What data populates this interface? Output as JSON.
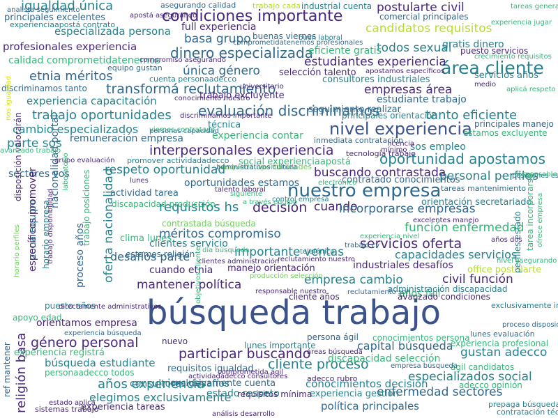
{
  "palette": {
    "c1": "#3b528b",
    "c2": "#482878",
    "c3": "#31688e",
    "c4": "#26828e",
    "c5": "#1f9e89",
    "c6": "#35b779",
    "c7": "#6ece58",
    "c8": "#b5de2b",
    "c9": "#d7e219"
  },
  "words": [
    {
      "text": "búsqueda trabajo",
      "weight": 1.0,
      "color": "c1"
    },
    {
      "text": "nuestro empresa",
      "weight": 0.48,
      "color": "c3"
    },
    {
      "text": "nivel experiencia",
      "weight": 0.43,
      "color": "c1"
    },
    {
      "text": "área cliente",
      "weight": 0.46,
      "color": "c4"
    },
    {
      "text": "condiciones importante",
      "weight": 0.38,
      "color": "c2"
    },
    {
      "text": "dinero especializada",
      "weight": 0.33,
      "color": "c3"
    },
    {
      "text": "transformá reclutamiento",
      "weight": 0.32,
      "color": "c3"
    },
    {
      "text": "evaluación discriminamos",
      "weight": 0.34,
      "color": "c3"
    },
    {
      "text": "interpersonales experiencia",
      "weight": 0.32,
      "color": "c2"
    },
    {
      "text": "oportunidad apostamos",
      "weight": 0.34,
      "color": "c4"
    },
    {
      "text": "cliente proceso",
      "weight": 0.32,
      "color": "c4"
    },
    {
      "text": "participar buscando",
      "weight": 0.32,
      "color": "c2"
    },
    {
      "text": "género personal",
      "weight": 0.3,
      "color": "c2"
    },
    {
      "text": "religión basa",
      "weight": 0.28,
      "color": "c2"
    },
    {
      "text": "servicios oferta",
      "weight": 0.3,
      "color": "c2"
    },
    {
      "text": "igualdad única",
      "weight": 0.29,
      "color": "c4"
    },
    {
      "text": "postularte civil",
      "weight": 0.27,
      "color": "c2"
    },
    {
      "text": "trabajo oportunidades",
      "weight": 0.29,
      "color": "c4"
    },
    {
      "text": "etnia méritos",
      "weight": 0.29,
      "color": "c3"
    },
    {
      "text": "decisión",
      "weight": 0.3,
      "color": "c2"
    },
    {
      "text": "cuando",
      "weight": 0.25,
      "color": "c2"
    },
    {
      "text": "requisitos hs",
      "weight": 0.28,
      "color": "c4"
    },
    {
      "text": "méritos compromiso",
      "weight": 0.27,
      "color": "c3"
    },
    {
      "text": "importante ventas",
      "weight": 0.27,
      "color": "c4"
    },
    {
      "text": "años experiencia",
      "weight": 0.28,
      "color": "c4"
    },
    {
      "text": "enfermedad sectores",
      "weight": 0.27,
      "color": "c3"
    },
    {
      "text": "gustan adecco",
      "weight": 0.27,
      "color": "c4"
    },
    {
      "text": "empresa cambio",
      "weight": 0.27,
      "color": "c4"
    },
    {
      "text": "civil función",
      "weight": 0.27,
      "color": "c2"
    },
    {
      "text": "mantener política",
      "weight": 0.26,
      "color": "c2"
    },
    {
      "text": "empresas área",
      "weight": 0.27,
      "color": "c2"
    },
    {
      "text": "tanto eficiente",
      "weight": 0.28,
      "color": "c4"
    },
    {
      "text": "única género",
      "weight": 0.27,
      "color": "c3"
    },
    {
      "text": "basa grupo",
      "weight": 0.27,
      "color": "c3"
    },
    {
      "text": "estudiantes experiencia",
      "weight": 0.26,
      "color": "c2"
    },
    {
      "text": "todos sexual",
      "weight": 0.26,
      "color": "c4"
    },
    {
      "text": "candidatos requisitos",
      "weight": 0.26,
      "color": "c8"
    },
    {
      "text": "respeto oportunidad",
      "weight": 0.26,
      "color": "c4"
    },
    {
      "text": "buscando contrastada",
      "weight": 0.25,
      "color": "c2"
    },
    {
      "text": "personal perfiles",
      "weight": 0.27,
      "color": "c4"
    },
    {
      "text": "incorporarse empresas",
      "weight": 0.26,
      "color": "c3"
    },
    {
      "text": "función enfermedad",
      "weight": 0.26,
      "color": "c6"
    },
    {
      "text": "cambio especializados",
      "weight": 0.24,
      "color": "c4"
    },
    {
      "text": "parte sos",
      "weight": 0.25,
      "color": "c4"
    },
    {
      "text": "especializados social",
      "weight": 0.26,
      "color": "c4"
    },
    {
      "text": "capital búsqueda",
      "weight": 0.24,
      "color": "c3"
    },
    {
      "text": "elegimos exclusivamente",
      "weight": 0.23,
      "color": "c4"
    },
    {
      "text": "desafíos parte",
      "weight": 0.24,
      "color": "c3"
    },
    {
      "text": "oferta nacionalidad",
      "weight": 0.25,
      "color": "c4"
    },
    {
      "text": "capacidades servicios",
      "weight": 0.24,
      "color": "c4"
    },
    {
      "text": "especializada persona",
      "weight": 0.21,
      "color": "c4"
    },
    {
      "text": "profesionales experiencia",
      "weight": 0.22,
      "color": "c2"
    },
    {
      "text": "conocimientos decisión",
      "weight": 0.22,
      "color": "c4"
    },
    {
      "text": "experiencia capacitación",
      "weight": 0.22,
      "color": "c4"
    },
    {
      "text": "política principales",
      "weight": 0.22,
      "color": "c3"
    },
    {
      "text": "búsqueda estudiante",
      "weight": 0.22,
      "color": "c4"
    },
    {
      "text": "orientamos empresa",
      "weight": 0.2,
      "color": "c2"
    },
    {
      "text": "discapacidad selección",
      "weight": 0.2,
      "color": "c6"
    },
    {
      "text": "industriales desafíos",
      "weight": 0.2,
      "color": "c2"
    },
    {
      "text": "experiencia contar",
      "weight": 0.2,
      "color": "c6"
    },
    {
      "text": "oportunidades estamos",
      "weight": 0.2,
      "color": "c3"
    },
    {
      "text": "consultores desafíos",
      "weight": 0.2,
      "color": "c4"
    },
    {
      "text": "estudiante trabajo",
      "weight": 0.19,
      "color": "c3"
    },
    {
      "text": "calidad comprometidatenemos",
      "weight": 0.2,
      "color": "c6"
    },
    {
      "text": "remuneración empresa",
      "weight": 0.19,
      "color": "c3"
    },
    {
      "text": "full experiencia",
      "weight": 0.19,
      "color": "c2"
    },
    {
      "text": "eficiente gratis",
      "weight": 0.19,
      "color": "c6"
    },
    {
      "text": "sectores vos",
      "weight": 0.19,
      "color": "c3"
    },
    {
      "text": "nacionalidad portal",
      "weight": 0.19,
      "color": "c3"
    },
    {
      "text": "zona equipo",
      "weight": 0.2,
      "color": "c4"
    },
    {
      "text": "específicos promover",
      "weight": 0.2,
      "color": "c2"
    },
    {
      "text": "gratis dinero",
      "weight": 0.19,
      "color": "c4"
    },
    {
      "text": "proceso años",
      "weight": 0.19,
      "color": "c3"
    },
    {
      "text": "años full",
      "weight": 0.19,
      "color": "c6"
    },
    {
      "text": "clientes servicio",
      "weight": 0.18,
      "color": "c4"
    },
    {
      "text": "sos empleo",
      "weight": 0.18,
      "color": "c4"
    },
    {
      "text": "cuando etnia",
      "weight": 0.18,
      "color": "c2"
    },
    {
      "text": "manejo orientación",
      "weight": 0.17,
      "color": "c2"
    },
    {
      "text": "estado respeto",
      "weight": 0.18,
      "color": "c4"
    },
    {
      "text": "experiencia tareas",
      "weight": 0.17,
      "color": "c2"
    },
    {
      "text": "requisitos igualdad",
      "weight": 0.17,
      "color": "c3"
    },
    {
      "text": "exclusivamente cuenta",
      "weight": 0.17,
      "color": "c3"
    },
    {
      "text": "experiencia gestión",
      "weight": 0.17,
      "color": "c4"
    },
    {
      "text": "seguimiento realizar",
      "weight": 0.16,
      "color": "c3"
    },
    {
      "text": "consultores industriales",
      "weight": 0.16,
      "color": "c4"
    },
    {
      "text": "trabajo excluyente",
      "weight": 0.16,
      "color": "c2"
    },
    {
      "text": "selección talento",
      "weight": 0.16,
      "color": "c2"
    },
    {
      "text": "social experienciaapostá",
      "weight": 0.16,
      "color": "c6"
    },
    {
      "text": "servicios años",
      "weight": 0.16,
      "color": "c4"
    },
    {
      "text": "actividad tarea",
      "weight": 0.16,
      "color": "c3"
    },
    {
      "text": "clima lunes",
      "weight": 0.16,
      "color": "c6"
    },
    {
      "text": "experiencia registrá",
      "weight": 0.16,
      "color": "c6"
    },
    {
      "text": "office postularte",
      "weight": 0.16,
      "color": "c8"
    },
    {
      "text": "principales excelentes",
      "weight": 0.16,
      "color": "c3"
    },
    {
      "text": "técnica",
      "weight": 0.16,
      "color": "c4"
    },
    {
      "text": "contratado conocimientos",
      "weight": 0.16,
      "color": "c3"
    },
    {
      "text": "orientación secretariado",
      "weight": 0.16,
      "color": "c4"
    },
    {
      "text": "tareas mantenimiento",
      "weight": 0.12,
      "color": "c3"
    },
    {
      "text": "discriminamos tanto",
      "weight": 0.15,
      "color": "c3"
    },
    {
      "text": "principales orientación",
      "weight": 0.15,
      "color": "c4"
    },
    {
      "text": "estamos excluyente",
      "weight": 0.15,
      "color": "c6"
    },
    {
      "text": "principales manejo",
      "weight": 0.15,
      "color": "c3"
    },
    {
      "text": "perfiles estado",
      "weight": 0.15,
      "color": "c4"
    },
    {
      "text": "buenas viernes",
      "weight": 0.15,
      "color": "c3"
    },
    {
      "text": "industrial cuenta",
      "weight": 0.15,
      "color": "c4"
    },
    {
      "text": "comercial principales",
      "weight": 0.15,
      "color": "c3"
    },
    {
      "text": "puesto servicios",
      "weight": 0.14,
      "color": "c2"
    },
    {
      "text": "administración discapacidad",
      "weight": 0.14,
      "color": "c4"
    },
    {
      "text": "conocimientos persona",
      "weight": 0.14,
      "color": "c6"
    },
    {
      "text": "experiencia profesional",
      "weight": 0.14,
      "color": "c6"
    },
    {
      "text": "contrastada búsqueda",
      "weight": 0.14,
      "color": "c7"
    },
    {
      "text": "discapacidad producción",
      "weight": 0.15,
      "color": "c6"
    },
    {
      "text": "estamos religión",
      "weight": 0.14,
      "color": "c3"
    },
    {
      "text": "puesto años",
      "weight": 0.14,
      "color": "c4"
    },
    {
      "text": "apoyo edad",
      "weight": 0.15,
      "color": "c6"
    },
    {
      "text": "nuevo",
      "weight": 0.15,
      "color": "c2"
    },
    {
      "text": "lunes importante",
      "weight": 0.14,
      "color": "c4"
    },
    {
      "text": "persona ágil",
      "weight": 0.14,
      "color": "c3"
    },
    {
      "text": "avanzado condiciones",
      "weight": 0.14,
      "color": "c2"
    },
    {
      "text": "cliente años",
      "weight": 0.14,
      "color": "c2"
    },
    {
      "text": "adecco rubro",
      "weight": 0.13,
      "color": "c2"
    },
    {
      "text": "requisitos mínima",
      "weight": 0.14,
      "color": "c2"
    },
    {
      "text": "personaadecco todos",
      "weight": 0.14,
      "color": "c6"
    },
    {
      "text": "ref mantener",
      "weight": 0.14,
      "color": "c3"
    },
    {
      "text": "disposición valorarán",
      "weight": 0.14,
      "color": "c2"
    },
    {
      "text": "trabajo posiciones",
      "weight": 0.14,
      "color": "c6"
    },
    {
      "text": "horario empresa",
      "weight": 0.14,
      "color": "c4"
    },
    {
      "text": "tarea incorporarse",
      "weight": 0.14,
      "color": "c6"
    },
    {
      "text": "ágil candidatos",
      "weight": 0.14,
      "color": "c6"
    },
    {
      "text": "adecco opinión",
      "weight": 0.14,
      "color": "c6"
    },
    {
      "text": "exclusivamente industrial",
      "weight": 0.13,
      "color": "c4"
    },
    {
      "text": "lunes evaluación",
      "weight": 0.12,
      "color": "c3"
    },
    {
      "text": "prepaga búsqueda",
      "weight": 0.12,
      "color": "c4"
    },
    {
      "text": "contratación técnico",
      "weight": 0.12,
      "color": "c4"
    },
    {
      "text": "equipo gustan",
      "weight": 0.12,
      "color": "c3"
    },
    {
      "text": "cuenta personaadecco",
      "weight": 0.12,
      "color": "c4"
    },
    {
      "text": "conocimiento nuestro",
      "weight": 0.1,
      "color": "c2"
    },
    {
      "text": "inmediata contratación",
      "weight": 0.12,
      "color": "c3"
    },
    {
      "text": "sistemas trabajo",
      "weight": 0.11,
      "color": "c2"
    },
    {
      "text": "asegurando calidad",
      "weight": 0.12,
      "color": "c3"
    },
    {
      "text": "trabajo cada",
      "weight": 0.12,
      "color": "c8"
    },
    {
      "text": "experienciaapostá contrato",
      "weight": 0.11,
      "color": "c4"
    },
    {
      "text": "buen laboral",
      "weight": 0.09,
      "color": "c4"
    },
    {
      "text": "comprometidatenemos profesionales",
      "weight": 0.09,
      "color": "c3"
    },
    {
      "text": "compromiso asegurando",
      "weight": 0.1,
      "color": "c2"
    },
    {
      "text": "universitario",
      "weight": 0.1,
      "color": "c2"
    },
    {
      "text": "promover actividadadecco",
      "weight": 0.11,
      "color": "c4"
    },
    {
      "text": "búsqueda oportunidades",
      "weight": 0.12,
      "color": "c7"
    },
    {
      "text": "grupo evaluación",
      "weight": 0.09,
      "color": "c2"
    },
    {
      "text": "tecnología trabajo",
      "weight": 0.11,
      "color": "c2"
    },
    {
      "text": "talento laboral",
      "weight": 0.1,
      "color": "c2"
    },
    {
      "text": "empresa búsqueda",
      "weight": 0.1,
      "color": "c3"
    },
    {
      "text": "clientes administración",
      "weight": 0.09,
      "color": "c2"
    },
    {
      "text": "aplicá respeto",
      "weight": 0.1,
      "color": "c6"
    },
    {
      "text": "viernes contratado",
      "weight": 0.09,
      "color": "c6"
    },
    {
      "text": "reclutamiento son",
      "weight": 0.09,
      "color": "c3"
    },
    {
      "text": "responsable nuestro",
      "weight": 0.09,
      "color": "c2"
    },
    {
      "text": "comprometida ágil",
      "weight": 0.09,
      "color": "c2"
    },
    {
      "text": "análisis desarrollo",
      "weight": 0.1,
      "color": "c2"
    },
    {
      "text": "estado aplicá",
      "weight": 0.09,
      "color": "c2"
    },
    {
      "text": "directamente administrativos",
      "weight": 0.09,
      "color": "c2"
    },
    {
      "text": "experiencia búsqueda",
      "weight": 0.09,
      "color": "c3"
    },
    {
      "text": "control empresa",
      "weight": 0.09,
      "color": "c4"
    },
    {
      "text": "proceso disposición",
      "weight": 0.09,
      "color": "c3"
    },
    {
      "text": "nivel asegurando",
      "weight": 0.09,
      "color": "c6"
    },
    {
      "text": "posiciones estamos",
      "weight": 0.09,
      "color": "c3"
    },
    {
      "text": "excelentes manejo",
      "weight": 0.09,
      "color": "c2"
    },
    {
      "text": "áreas búsqueda",
      "weight": 0.09,
      "color": "c2"
    },
    {
      "text": "apostá asegurando",
      "weight": 0.09,
      "color": "c2"
    },
    {
      "text": "tareas general",
      "weight": 0.09,
      "color": "c6"
    },
    {
      "text": "experiencia jugar",
      "weight": 0.09,
      "color": "c6"
    },
    {
      "text": "crecimiento requisitos",
      "weight": 0.09,
      "color": "c6"
    },
    {
      "text": "apostamos específicos",
      "weight": 0.09,
      "color": "c2"
    },
    {
      "text": "personas capacidad",
      "weight": 0.09,
      "color": "c3"
    },
    {
      "text": "objetivos cliente",
      "weight": 0.09,
      "color": "c6"
    },
    {
      "text": "responsable empresa",
      "weight": 0.09,
      "color": "c6"
    },
    {
      "text": "lunes",
      "weight": 0.09,
      "color": "c2"
    },
    {
      "text": "siguiente",
      "weight": 0.09,
      "color": "c6"
    },
    {
      "text": "electrónico",
      "weight": 0.09,
      "color": "c6"
    },
    {
      "text": "producción selección",
      "weight": 0.09,
      "color": "c7"
    },
    {
      "text": "telefónica",
      "weight": 0.09,
      "color": "c4"
    },
    {
      "text": "administrativos cultura",
      "weight": 0.09,
      "color": "c3"
    },
    {
      "text": "actividadadecco consultores",
      "weight": 0.09,
      "color": "c2"
    },
    {
      "text": "discriminamos importante",
      "weight": 0.09,
      "color": "c2"
    },
    {
      "text": "experiencia nivel",
      "weight": 0.09,
      "color": "c6"
    },
    {
      "text": "trabajo cv",
      "weight": 0.09,
      "color": "c3"
    },
    {
      "text": "años dos",
      "weight": 0.09,
      "color": "c2"
    },
    {
      "text": "día búsqueda",
      "weight": 0.09,
      "color": "c6"
    },
    {
      "text": "reclutamiento nuestro",
      "weight": 0.09,
      "color": "c2"
    },
    {
      "text": "trabajo disponibilidad",
      "weight": 0.09,
      "color": "c2"
    },
    {
      "text": "licencia",
      "weight": 0.09,
      "color": "c2"
    },
    {
      "text": "mínimo",
      "weight": 0.09,
      "color": "c2"
    },
    {
      "text": "medio",
      "weight": 0.09,
      "color": "c2"
    },
    {
      "text": "a través equipo",
      "weight": 0.09,
      "color": "c6"
    },
    {
      "text": "avanzado trabajo",
      "weight": 0.09,
      "color": "c6"
    },
    {
      "text": "nos igualdad",
      "weight": 0.09,
      "color": "c9"
    },
    {
      "text": "laboratorio",
      "weight": 0.09,
      "color": "c6"
    },
    {
      "text": "ofrece empresa",
      "weight": 0.09,
      "color": "c6"
    },
    {
      "text": "horario perfiles",
      "weight": 0.09,
      "color": "c7"
    },
    {
      "text": "analista seguimiento",
      "weight": 0.09,
      "color": "c3"
    }
  ]
}
